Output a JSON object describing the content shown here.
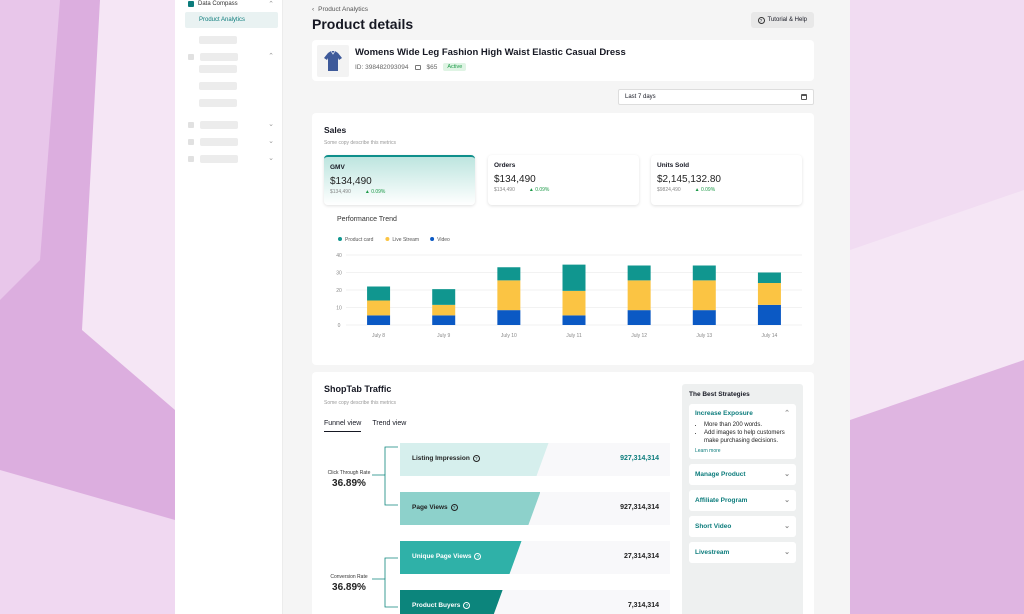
{
  "sidebar": {
    "group_label": "Data Compass",
    "active_item": "Product Analytics"
  },
  "header": {
    "breadcrumb": "Product Analytics",
    "title": "Product details",
    "help_label": "Tutorial & Help"
  },
  "product": {
    "name": "Womens Wide Leg Fashion High Waist Elastic Casual Dress",
    "id_label": "ID: 398482093094",
    "price": "$65",
    "status": "Active"
  },
  "date_range": "Last 7 days",
  "sales": {
    "title": "Sales",
    "subtitle": "Some copy describe this metrics",
    "metrics": [
      {
        "label": "GMV",
        "value": "$134,490",
        "prev": "$134,490",
        "change": "0.09%"
      },
      {
        "label": "Orders",
        "value": "$134,490",
        "prev": "$134,490",
        "change": "0.09%"
      },
      {
        "label": "Units Sold",
        "value": "$2,145,132.80",
        "prev": "$9824,490",
        "change": "0.09%"
      }
    ],
    "chart_title": "Performance Trend"
  },
  "chart_data": {
    "type": "bar",
    "stacked": true,
    "categories": [
      "July 8",
      "July 9",
      "July 10",
      "July 11",
      "July 12",
      "July 13",
      "July 14"
    ],
    "series": [
      {
        "name": "Product card",
        "color": "#10968f",
        "values": [
          8,
          9,
          7.5,
          15,
          8.5,
          8.5,
          6
        ]
      },
      {
        "name": "Live Stream",
        "color": "#fbc443",
        "values": [
          8.5,
          6,
          17,
          14,
          17,
          17,
          12.5
        ]
      },
      {
        "name": "Video",
        "color": "#0b59c4",
        "values": [
          5.5,
          5.5,
          8.5,
          5.5,
          8.5,
          8.5,
          11.5
        ]
      }
    ],
    "ylim": [
      0,
      40
    ],
    "yticks": [
      "0",
      "10",
      "20",
      "30",
      "40"
    ],
    "legend": "top-left",
    "grid": true
  },
  "traffic": {
    "title": "ShopTab Traffic",
    "subtitle": "Some copy describe this metrics",
    "tabs": [
      "Funnel view",
      "Trend view"
    ],
    "ctr_label": "Click Through Rate",
    "ctr_value": "36.89%",
    "conv_label": "Conversion Rate",
    "conv_value": "36.89%",
    "funnel": [
      {
        "label": "Listing Impression",
        "value": "927,314,314",
        "fill": 0.55,
        "color": "#d6efed",
        "light": false
      },
      {
        "label": "Page Views",
        "value": "927,314,314",
        "fill": 0.52,
        "color": "#8dd1cb",
        "light": false
      },
      {
        "label": "Unique Page Views",
        "value": "27,314,314",
        "fill": 0.45,
        "color": "#2fb1a8",
        "light": true
      },
      {
        "label": "Product Buyers",
        "value": "7,314,314",
        "fill": 0.38,
        "color": "#0c857c",
        "light": true
      }
    ]
  },
  "strategies": {
    "title": "The Best Strategies",
    "open_item": {
      "title": "Increase Exposure",
      "bullets": [
        "More than 200 words.",
        "Add images to help customers make purchasing decisions."
      ],
      "link": "Learn more"
    },
    "items": [
      "Manage Product",
      "Affiliate Program",
      "Short Video",
      "Livestream"
    ]
  }
}
